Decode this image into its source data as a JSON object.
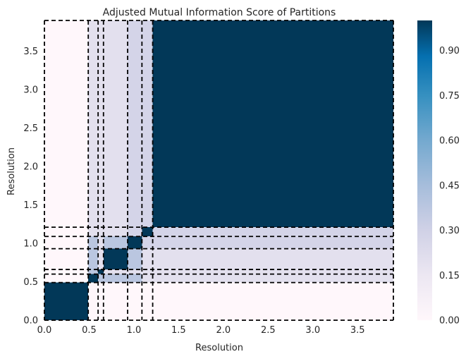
{
  "chart_data": {
    "type": "heatmap",
    "title": "Adjusted Mutual Information Score of Partitions",
    "xlabel": "Resolution",
    "ylabel": "Resolution",
    "xlim": [
      0,
      3.9
    ],
    "ylim": [
      0,
      3.9
    ],
    "xticks": [
      0.0,
      0.5,
      1.0,
      1.5,
      2.0,
      2.5,
      3.0,
      3.5
    ],
    "xtick_labels": [
      "0.0",
      "0.5",
      "1.0",
      "1.5",
      "2.0",
      "2.5",
      "3.0",
      "3.5"
    ],
    "yticks": [
      0.0,
      0.5,
      1.0,
      1.5,
      2.0,
      2.5,
      3.0,
      3.5
    ],
    "ytick_labels": [
      "0.0",
      "0.5",
      "1.0",
      "1.5",
      "2.0",
      "2.5",
      "3.0",
      "3.5"
    ],
    "partition_boundaries": [
      0.49,
      0.6,
      0.66,
      0.93,
      1.09,
      1.21
    ],
    "blocks": [
      {
        "from": 0.0,
        "to": 0.49
      },
      {
        "from": 0.49,
        "to": 0.6
      },
      {
        "from": 0.6,
        "to": 0.66
      },
      {
        "from": 0.66,
        "to": 0.93
      },
      {
        "from": 0.93,
        "to": 1.09
      },
      {
        "from": 1.09,
        "to": 1.21
      },
      {
        "from": 1.21,
        "to": 3.9
      }
    ],
    "matrix": [
      [
        1.0,
        0.0,
        0.0,
        0.0,
        0.0,
        0.0,
        0.0
      ],
      [
        0.0,
        1.0,
        0.38,
        0.38,
        0.38,
        0.2,
        0.2
      ],
      [
        0.0,
        0.38,
        1.0,
        0.2,
        0.2,
        0.2,
        0.2
      ],
      [
        0.0,
        0.38,
        0.2,
        1.0,
        0.38,
        0.2,
        0.2
      ],
      [
        0.0,
        0.38,
        0.2,
        0.38,
        1.0,
        0.28,
        0.28
      ],
      [
        0.0,
        0.2,
        0.2,
        0.2,
        0.28,
        1.0,
        0.28
      ],
      [
        0.0,
        0.2,
        0.2,
        0.2,
        0.28,
        0.28,
        1.0
      ]
    ],
    "colormap": "PuBu",
    "colorbar": {
      "min": 0.0,
      "max": 1.0,
      "ticks": [
        0.0,
        0.15,
        0.3,
        0.45,
        0.6,
        0.75,
        0.9
      ],
      "tick_labels": [
        "0.00",
        "0.15",
        "0.30",
        "0.45",
        "0.60",
        "0.75",
        "0.90"
      ]
    },
    "grid": false,
    "boundary_line_style": "dashed black"
  }
}
